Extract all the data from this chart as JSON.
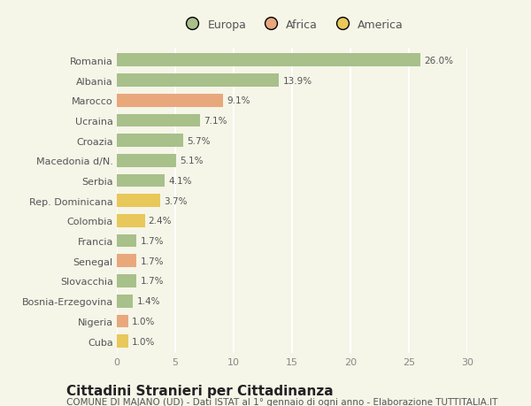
{
  "categories": [
    "Romania",
    "Albania",
    "Marocco",
    "Ucraina",
    "Croazia",
    "Macedonia d/N.",
    "Serbia",
    "Rep. Dominicana",
    "Colombia",
    "Francia",
    "Senegal",
    "Slovacchia",
    "Bosnia-Erzegovina",
    "Nigeria",
    "Cuba"
  ],
  "values": [
    26.0,
    13.9,
    9.1,
    7.1,
    5.7,
    5.1,
    4.1,
    3.7,
    2.4,
    1.7,
    1.7,
    1.7,
    1.4,
    1.0,
    1.0
  ],
  "colors": [
    "#a8c08a",
    "#a8c08a",
    "#e8a87c",
    "#a8c08a",
    "#a8c08a",
    "#a8c08a",
    "#a8c08a",
    "#e8c85a",
    "#e8c85a",
    "#a8c08a",
    "#e8a87c",
    "#a8c08a",
    "#a8c08a",
    "#e8a87c",
    "#e8c85a"
  ],
  "legend_labels": [
    "Europa",
    "Africa",
    "America"
  ],
  "legend_colors": [
    "#a8c08a",
    "#e8a87c",
    "#e8c85a"
  ],
  "title": "Cittadini Stranieri per Cittadinanza",
  "subtitle": "COMUNE DI MAJANO (UD) - Dati ISTAT al 1° gennaio di ogni anno - Elaborazione TUTTITALIA.IT",
  "xlim": [
    0,
    30
  ],
  "xticks": [
    0,
    5,
    10,
    15,
    20,
    25,
    30
  ],
  "background_color": "#f5f5e8",
  "grid_color": "#ffffff",
  "bar_height": 0.65,
  "label_fontsize": 7.5,
  "tick_fontsize": 8,
  "legend_fontsize": 9,
  "title_fontsize": 11,
  "subtitle_fontsize": 7.5
}
